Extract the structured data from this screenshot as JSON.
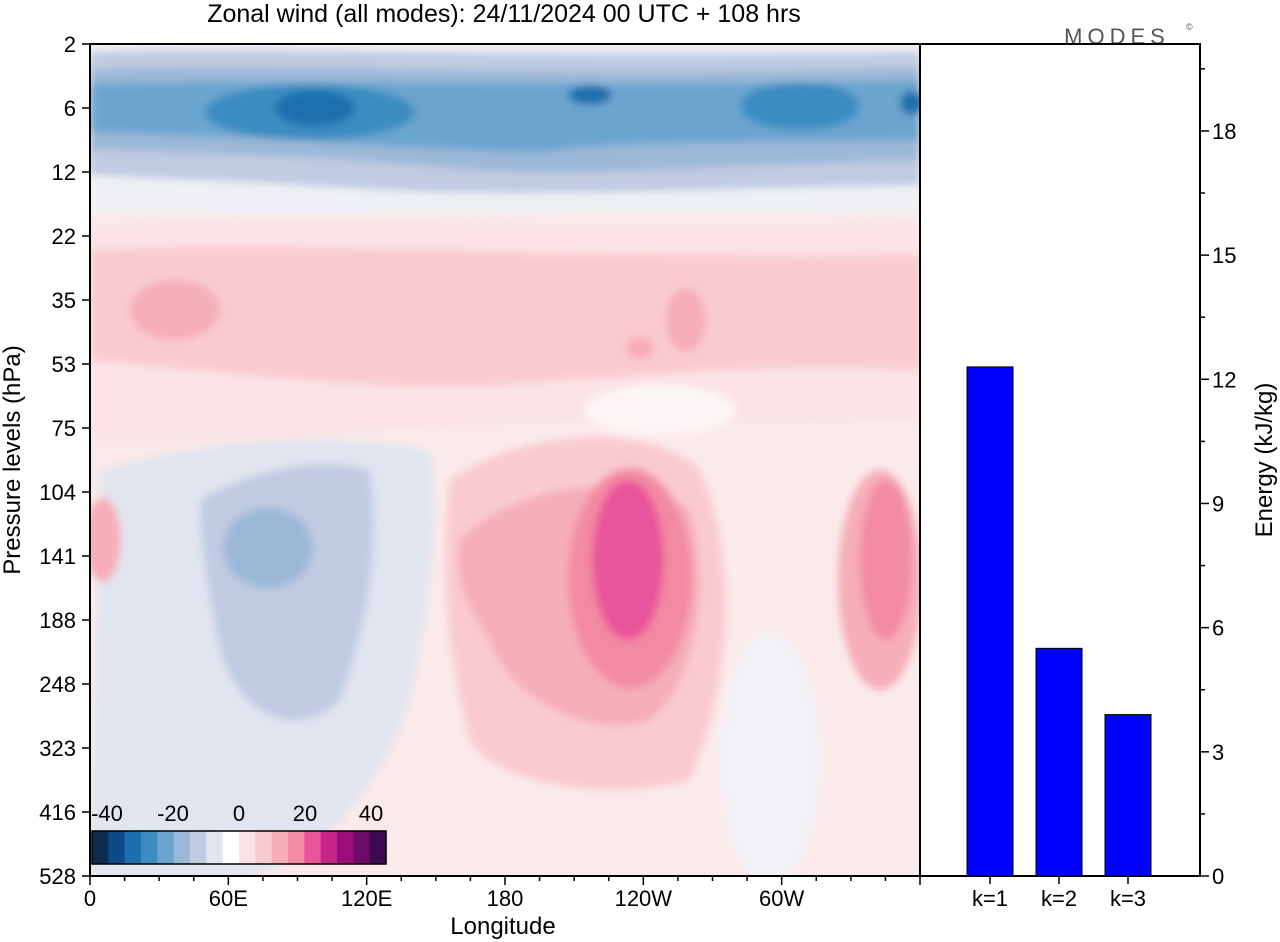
{
  "title": "Zonal wind (all modes):  24/11/2024  00 UTC  + 108 hrs",
  "logo": {
    "text": "MODES",
    "mark": "©"
  },
  "colors": {
    "bar": "#0000ff",
    "palette": [
      "#0b2c4f",
      "#0c4a85",
      "#1a6fae",
      "#3a8cc1",
      "#6aa5cf",
      "#9bb8d8",
      "#c0cbe2",
      "#e1e5ef",
      "#ffffff",
      "#fbe3e5",
      "#f9cbd0",
      "#f6aeb8",
      "#f28aa3",
      "#e9559a",
      "#c5258a",
      "#9b0d7a",
      "#6d0a6a",
      "#3d0a4f"
    ]
  },
  "chart_data": [
    {
      "type": "heatmap",
      "title": "Zonal wind (all modes):  24/11/2024  00 UTC  + 108 hrs",
      "xlabel": "Longitude",
      "ylabel": "Pressure levels (hPa)",
      "x_ticks": [
        "0",
        "60E",
        "120E",
        "180",
        "120W",
        "60W"
      ],
      "y_ticks": [
        "2",
        "6",
        "12",
        "22",
        "35",
        "53",
        "75",
        "104",
        "141",
        "188",
        "248",
        "323",
        "416",
        "528"
      ],
      "colorbar": {
        "ticks": [
          "-40",
          "-20",
          "0",
          "20",
          "40"
        ],
        "range": [
          -40,
          40
        ],
        "levels": 18
      },
      "features": [
        {
          "lon": 95,
          "level": "6",
          "value": -33
        },
        {
          "lon": 215,
          "level": "6",
          "value": -26
        },
        {
          "lon": 305,
          "level": "6",
          "value": -27
        },
        {
          "lon": 190,
          "level": "12",
          "value": -18
        },
        {
          "lon": 30,
          "level": "35",
          "value": 12
        },
        {
          "lon": 253,
          "level": "35",
          "value": 11
        },
        {
          "lon": 80,
          "level": "141",
          "value": -18
        },
        {
          "lon": 230,
          "level": "141",
          "value": 27
        },
        {
          "lon": 340,
          "level": "141",
          "value": 20
        },
        {
          "lon": 5,
          "level": "141",
          "value": 10
        },
        {
          "lon": 190,
          "level": "188",
          "value": 14
        }
      ]
    },
    {
      "type": "bar",
      "categories": [
        "k=1",
        "k=2",
        "k=3"
      ],
      "values": [
        12.3,
        5.5,
        3.9
      ],
      "ylabel": "Energy (kJ/kg)",
      "ylim": [
        0,
        20
      ],
      "y_ticks": [
        0,
        3,
        6,
        9,
        12,
        15,
        18
      ]
    }
  ]
}
